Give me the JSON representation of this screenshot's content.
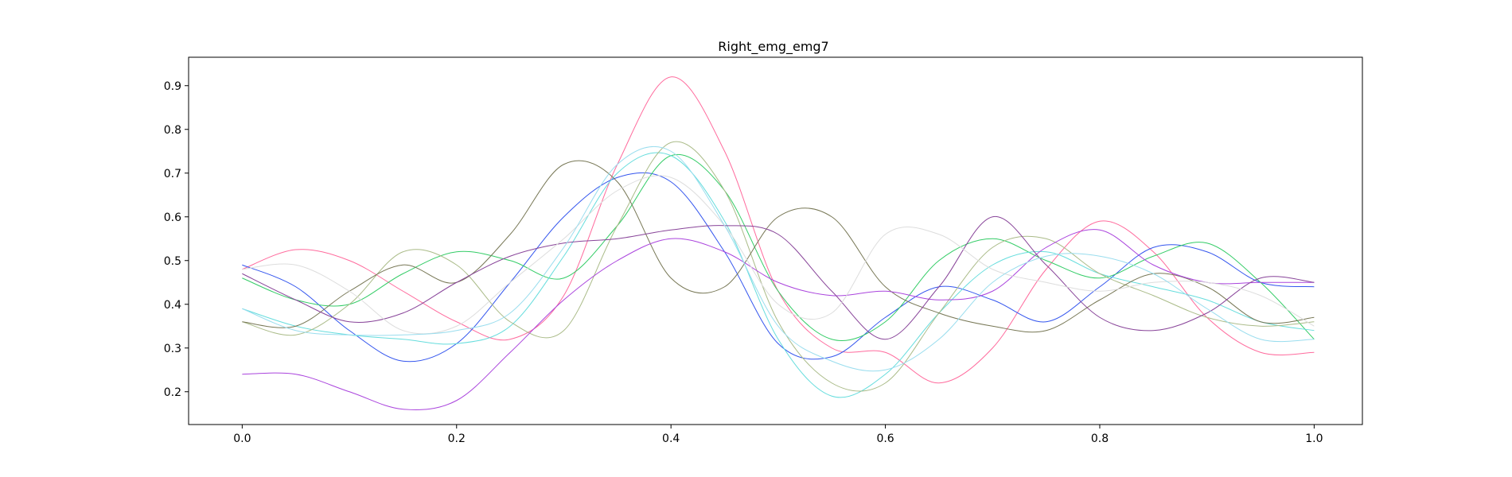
{
  "chart_data": {
    "type": "line",
    "title": "Right_emg_emg7",
    "xlabel": "",
    "ylabel": "",
    "xlim": [
      -0.05,
      1.045
    ],
    "ylim": [
      0.125,
      0.965
    ],
    "x_ticks": [
      0.0,
      0.2,
      0.4,
      0.6,
      0.8,
      1.0
    ],
    "x_tick_labels": [
      "0.0",
      "0.2",
      "0.4",
      "0.6",
      "0.8",
      "1.0"
    ],
    "y_ticks": [
      0.2,
      0.3,
      0.4,
      0.5,
      0.6,
      0.7,
      0.8,
      0.9
    ],
    "y_tick_labels": [
      "0.2",
      "0.3",
      "0.4",
      "0.5",
      "0.6",
      "0.7",
      "0.8",
      "0.9"
    ],
    "grid": false,
    "legend": "none",
    "series": [
      {
        "color": "#ff6b9d",
        "x": [
          0.0,
          0.05,
          0.1,
          0.15,
          0.2,
          0.25,
          0.3,
          0.35,
          0.4,
          0.45,
          0.5,
          0.55,
          0.6,
          0.65,
          0.7,
          0.75,
          0.8,
          0.85,
          0.9,
          0.95,
          1.0
        ],
        "y": [
          0.48,
          0.525,
          0.5,
          0.43,
          0.36,
          0.32,
          0.42,
          0.72,
          0.92,
          0.75,
          0.43,
          0.3,
          0.29,
          0.22,
          0.3,
          0.48,
          0.59,
          0.52,
          0.37,
          0.29,
          0.29
        ]
      },
      {
        "color": "#3355ee",
        "x": [
          0.0,
          0.05,
          0.1,
          0.15,
          0.2,
          0.25,
          0.3,
          0.35,
          0.4,
          0.45,
          0.5,
          0.55,
          0.6,
          0.65,
          0.7,
          0.75,
          0.8,
          0.85,
          0.9,
          0.95,
          1.0
        ],
        "y": [
          0.49,
          0.44,
          0.34,
          0.27,
          0.31,
          0.45,
          0.6,
          0.69,
          0.68,
          0.52,
          0.31,
          0.28,
          0.37,
          0.44,
          0.41,
          0.36,
          0.44,
          0.53,
          0.52,
          0.45,
          0.44
        ]
      },
      {
        "color": "#33cc66",
        "x": [
          0.0,
          0.05,
          0.1,
          0.15,
          0.2,
          0.25,
          0.3,
          0.35,
          0.4,
          0.45,
          0.5,
          0.55,
          0.6,
          0.65,
          0.7,
          0.75,
          0.8,
          0.85,
          0.9,
          0.95,
          1.0
        ],
        "y": [
          0.46,
          0.41,
          0.4,
          0.47,
          0.52,
          0.5,
          0.46,
          0.58,
          0.74,
          0.66,
          0.43,
          0.32,
          0.36,
          0.5,
          0.55,
          0.5,
          0.46,
          0.51,
          0.54,
          0.45,
          0.32
        ]
      },
      {
        "color": "#66dddd",
        "x": [
          0.0,
          0.05,
          0.1,
          0.15,
          0.2,
          0.25,
          0.3,
          0.35,
          0.4,
          0.45,
          0.5,
          0.55,
          0.6,
          0.65,
          0.7,
          0.75,
          0.8,
          0.85,
          0.9,
          0.95,
          1.0
        ],
        "y": [
          0.39,
          0.35,
          0.33,
          0.32,
          0.31,
          0.35,
          0.51,
          0.7,
          0.74,
          0.59,
          0.32,
          0.19,
          0.24,
          0.38,
          0.49,
          0.52,
          0.47,
          0.44,
          0.41,
          0.36,
          0.34
        ]
      },
      {
        "color": "#aabb88",
        "x": [
          0.0,
          0.05,
          0.1,
          0.15,
          0.2,
          0.25,
          0.3,
          0.35,
          0.4,
          0.45,
          0.5,
          0.55,
          0.6,
          0.65,
          0.7,
          0.75,
          0.8,
          0.85,
          0.9,
          0.95,
          1.0
        ],
        "y": [
          0.36,
          0.33,
          0.4,
          0.52,
          0.49,
          0.36,
          0.34,
          0.58,
          0.77,
          0.66,
          0.36,
          0.22,
          0.22,
          0.38,
          0.53,
          0.55,
          0.47,
          0.42,
          0.37,
          0.35,
          0.36
        ]
      },
      {
        "color": "#777755",
        "x": [
          0.0,
          0.05,
          0.1,
          0.15,
          0.2,
          0.25,
          0.3,
          0.35,
          0.4,
          0.45,
          0.5,
          0.55,
          0.6,
          0.65,
          0.7,
          0.75,
          0.8,
          0.85,
          0.9,
          0.95,
          1.0
        ],
        "y": [
          0.36,
          0.35,
          0.43,
          0.49,
          0.45,
          0.56,
          0.72,
          0.68,
          0.46,
          0.44,
          0.6,
          0.6,
          0.44,
          0.38,
          0.35,
          0.34,
          0.41,
          0.47,
          0.44,
          0.36,
          0.37
        ]
      },
      {
        "color": "#aa44dd",
        "x": [
          0.0,
          0.05,
          0.1,
          0.15,
          0.2,
          0.25,
          0.3,
          0.35,
          0.4,
          0.45,
          0.5,
          0.55,
          0.6,
          0.65,
          0.7,
          0.75,
          0.8,
          0.85,
          0.9,
          0.95,
          1.0
        ],
        "y": [
          0.24,
          0.24,
          0.2,
          0.16,
          0.18,
          0.29,
          0.41,
          0.5,
          0.55,
          0.52,
          0.45,
          0.42,
          0.43,
          0.41,
          0.43,
          0.53,
          0.57,
          0.49,
          0.45,
          0.45,
          0.45
        ]
      },
      {
        "color": "#884499",
        "x": [
          0.0,
          0.05,
          0.1,
          0.15,
          0.2,
          0.25,
          0.3,
          0.35,
          0.4,
          0.45,
          0.5,
          0.55,
          0.6,
          0.65,
          0.7,
          0.75,
          0.8,
          0.85,
          0.9,
          0.95,
          1.0
        ],
        "y": [
          0.47,
          0.41,
          0.36,
          0.38,
          0.45,
          0.51,
          0.54,
          0.55,
          0.57,
          0.58,
          0.56,
          0.43,
          0.32,
          0.44,
          0.6,
          0.49,
          0.37,
          0.34,
          0.38,
          0.46,
          0.45
        ]
      },
      {
        "color": "#dddddd",
        "x": [
          0.0,
          0.05,
          0.1,
          0.15,
          0.2,
          0.25,
          0.3,
          0.35,
          0.4,
          0.45,
          0.5,
          0.55,
          0.6,
          0.65,
          0.7,
          0.75,
          0.8,
          0.85,
          0.9,
          0.95,
          1.0
        ],
        "y": [
          0.48,
          0.49,
          0.43,
          0.34,
          0.35,
          0.45,
          0.55,
          0.66,
          0.69,
          0.58,
          0.4,
          0.38,
          0.56,
          0.56,
          0.48,
          0.45,
          0.43,
          0.45,
          0.45,
          0.42,
          0.35
        ]
      },
      {
        "color": "#99ddee",
        "x": [
          0.0,
          0.05,
          0.1,
          0.15,
          0.2,
          0.25,
          0.3,
          0.35,
          0.4,
          0.45,
          0.5,
          0.55,
          0.6,
          0.65,
          0.7,
          0.75,
          0.8,
          0.85,
          0.9,
          0.95,
          1.0
        ],
        "y": [
          0.39,
          0.34,
          0.33,
          0.33,
          0.34,
          0.38,
          0.53,
          0.72,
          0.75,
          0.58,
          0.35,
          0.27,
          0.25,
          0.32,
          0.45,
          0.51,
          0.51,
          0.47,
          0.39,
          0.32,
          0.32
        ]
      }
    ]
  }
}
